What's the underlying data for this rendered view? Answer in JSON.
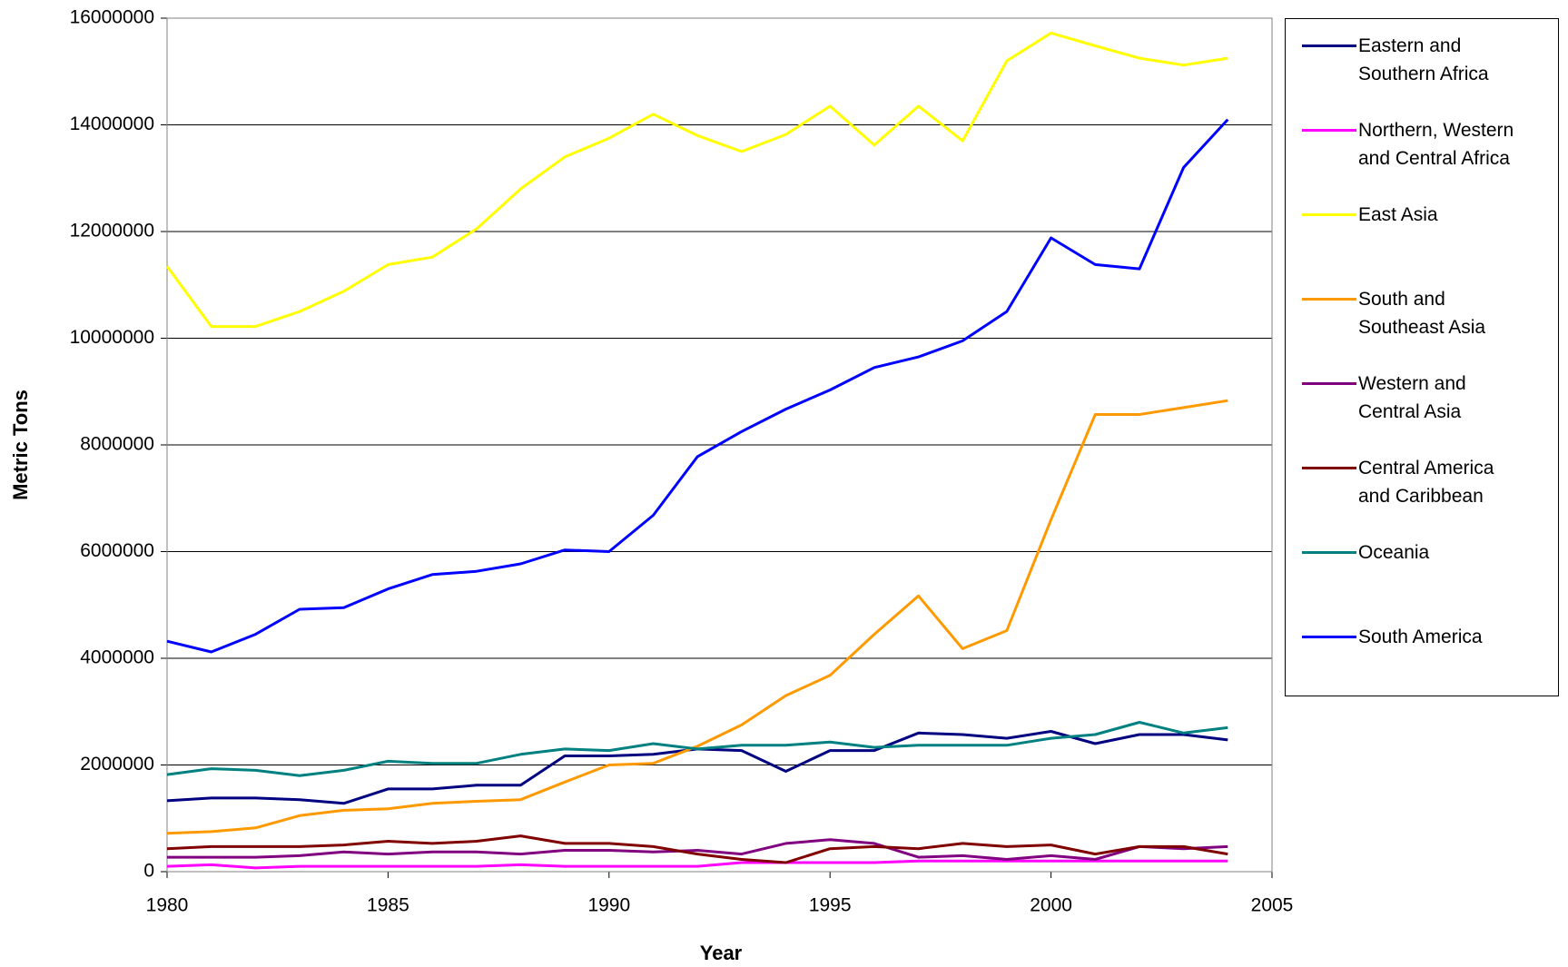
{
  "chart_data": {
    "type": "line",
    "x_label": "Year",
    "y_label": "Metric Tons",
    "x": [
      1980,
      1981,
      1982,
      1983,
      1984,
      1985,
      1986,
      1987,
      1988,
      1989,
      1990,
      1991,
      1992,
      1993,
      1994,
      1995,
      1996,
      1997,
      1998,
      1999,
      2000,
      2001,
      2002,
      2003,
      2004
    ],
    "xlim": [
      1980,
      2005
    ],
    "xticks": [
      1980,
      1985,
      1990,
      1995,
      2000,
      2005
    ],
    "ylim": [
      0,
      16000000
    ],
    "yticks": [
      0,
      2000000,
      4000000,
      6000000,
      8000000,
      10000000,
      12000000,
      14000000,
      16000000
    ],
    "grid": true,
    "legend": "right",
    "series": [
      {
        "name": "Eastern and Southern Africa",
        "color": "#000080",
        "values": [
          1330000,
          1380000,
          1380000,
          1350000,
          1280000,
          1550000,
          1550000,
          1620000,
          1620000,
          2170000,
          2170000,
          2200000,
          2300000,
          2270000,
          1880000,
          2270000,
          2270000,
          2600000,
          2570000,
          2500000,
          2630000,
          2400000,
          2570000,
          2570000,
          2470000
        ]
      },
      {
        "name": "Northern, Western and Central Africa",
        "color": "#ff00ff",
        "values": [
          100000,
          130000,
          70000,
          100000,
          100000,
          100000,
          100000,
          100000,
          130000,
          100000,
          100000,
          100000,
          100000,
          170000,
          170000,
          170000,
          170000,
          200000,
          200000,
          200000,
          200000,
          200000,
          200000,
          200000,
          200000
        ]
      },
      {
        "name": "East Asia",
        "color": "#ffff00",
        "values": [
          11350000,
          10220000,
          10220000,
          10500000,
          10880000,
          11380000,
          11520000,
          12050000,
          12800000,
          13400000,
          13750000,
          14200000,
          13800000,
          13500000,
          13820000,
          14350000,
          13620000,
          14350000,
          13700000,
          15200000,
          15720000,
          15480000,
          15250000,
          15120000,
          15250000
        ]
      },
      {
        "name": "South and Southeast Asia",
        "color": "#ff9900",
        "values": [
          720000,
          750000,
          820000,
          1050000,
          1150000,
          1180000,
          1280000,
          1320000,
          1350000,
          1680000,
          2000000,
          2030000,
          2350000,
          2750000,
          3300000,
          3680000,
          4450000,
          5170000,
          4180000,
          4520000,
          6600000,
          8570000,
          8570000,
          8700000,
          8830000
        ]
      },
      {
        "name": "Western and Central Asia",
        "color": "#800080",
        "values": [
          270000,
          270000,
          270000,
          300000,
          370000,
          330000,
          370000,
          370000,
          330000,
          400000,
          400000,
          370000,
          400000,
          330000,
          530000,
          600000,
          530000,
          270000,
          300000,
          230000,
          300000,
          230000,
          470000,
          430000,
          470000
        ]
      },
      {
        "name": "Central America and Caribbean",
        "color": "#800000",
        "values": [
          430000,
          470000,
          470000,
          470000,
          500000,
          570000,
          530000,
          570000,
          670000,
          530000,
          530000,
          470000,
          330000,
          230000,
          170000,
          430000,
          470000,
          430000,
          530000,
          470000,
          500000,
          330000,
          470000,
          470000,
          330000
        ]
      },
      {
        "name": "Oceania",
        "color": "#008080",
        "values": [
          1820000,
          1930000,
          1900000,
          1800000,
          1900000,
          2070000,
          2030000,
          2030000,
          2200000,
          2300000,
          2270000,
          2400000,
          2300000,
          2370000,
          2370000,
          2430000,
          2330000,
          2370000,
          2370000,
          2370000,
          2500000,
          2570000,
          2800000,
          2600000,
          2700000
        ]
      },
      {
        "name": "South America",
        "color": "#0000ff",
        "values": [
          4320000,
          4120000,
          4450000,
          4920000,
          4950000,
          5300000,
          5570000,
          5630000,
          5770000,
          6030000,
          6000000,
          6680000,
          7780000,
          8250000,
          8670000,
          9030000,
          9450000,
          9650000,
          9950000,
          10500000,
          11880000,
          11380000,
          11300000,
          13200000,
          14100000
        ]
      }
    ]
  }
}
